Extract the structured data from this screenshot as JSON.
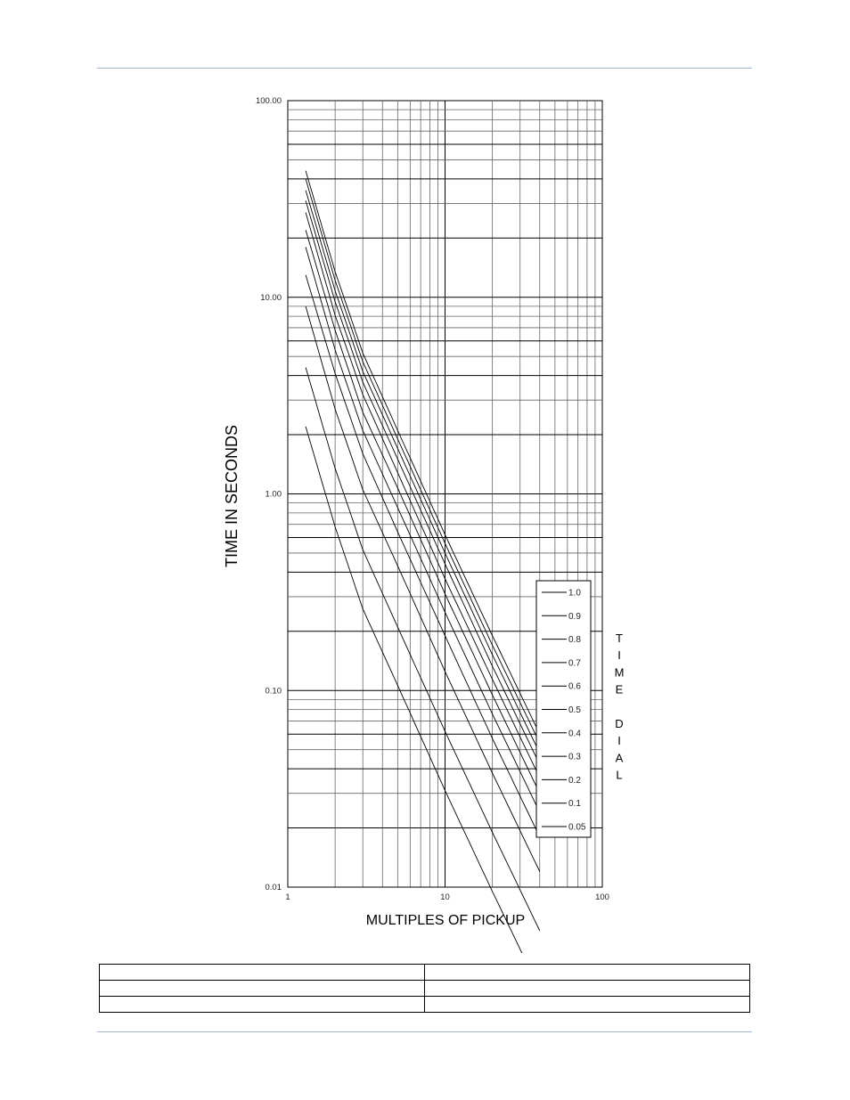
{
  "chart_data": {
    "type": "line",
    "x_scale": "log",
    "y_scale": "log",
    "xlim": [
      1,
      100
    ],
    "ylim": [
      0.01,
      100
    ],
    "xlabel": "MULTIPLES OF PICKUP",
    "ylabel": "TIME IN SECONDS",
    "x_tick_labels": [
      "1",
      "10",
      "100"
    ],
    "y_tick_labels": [
      "0.01",
      "0.10",
      "1.00",
      "10.00",
      "100.00"
    ],
    "grid": true,
    "legend_position": "bottom-right",
    "legend_title": "TIME DIAL",
    "series": [
      {
        "name": "1.0",
        "x": [
          1.3,
          2,
          3,
          5,
          10,
          20,
          40
        ],
        "y": [
          44,
          13.5,
          5.2,
          2.1,
          0.62,
          0.19,
          0.06
        ]
      },
      {
        "name": "0.9",
        "x": [
          1.3,
          2,
          3,
          5,
          10,
          20,
          40
        ],
        "y": [
          40,
          12.2,
          4.7,
          1.9,
          0.56,
          0.17,
          0.054
        ]
      },
      {
        "name": "0.8",
        "x": [
          1.3,
          2,
          3,
          5,
          10,
          20,
          40
        ],
        "y": [
          35,
          10.8,
          4.2,
          1.7,
          0.5,
          0.152,
          0.048
        ]
      },
      {
        "name": "0.7",
        "x": [
          1.3,
          2,
          3,
          5,
          10,
          20,
          40
        ],
        "y": [
          31,
          9.5,
          3.7,
          1.5,
          0.44,
          0.133,
          0.042
        ]
      },
      {
        "name": "0.6",
        "x": [
          1.3,
          2,
          3,
          5,
          10,
          20,
          40
        ],
        "y": [
          27,
          8.1,
          3.2,
          1.28,
          0.37,
          0.114,
          0.036
        ]
      },
      {
        "name": "0.5",
        "x": [
          1.3,
          2,
          3,
          5,
          10,
          20,
          40
        ],
        "y": [
          22,
          6.8,
          2.6,
          1.07,
          0.31,
          0.095,
          0.03
        ]
      },
      {
        "name": "0.4",
        "x": [
          1.3,
          2,
          3,
          5,
          10,
          20,
          40
        ],
        "y": [
          18,
          5.4,
          2.1,
          0.85,
          0.25,
          0.076,
          0.024
        ]
      },
      {
        "name": "0.3",
        "x": [
          1.3,
          2,
          3,
          5,
          10,
          20,
          40
        ],
        "y": [
          13,
          4.1,
          1.6,
          0.64,
          0.19,
          0.057,
          0.018
        ]
      },
      {
        "name": "0.2",
        "x": [
          1.3,
          2,
          3,
          5,
          10,
          20,
          40
        ],
        "y": [
          9,
          2.7,
          1.05,
          0.43,
          0.125,
          0.038,
          0.012
        ]
      },
      {
        "name": "0.1",
        "x": [
          1.3,
          2,
          3,
          5,
          10,
          20,
          40
        ],
        "y": [
          4.4,
          1.35,
          0.52,
          0.21,
          0.062,
          0.019,
          0.006
        ]
      },
      {
        "name": "0.05",
        "x": [
          1.3,
          2,
          3,
          5,
          10,
          20,
          40
        ],
        "y": [
          2.2,
          0.68,
          0.26,
          0.106,
          0.031,
          0.0095,
          0.003
        ]
      }
    ]
  },
  "side_title_letters": [
    "T",
    "I",
    "M",
    "E",
    "",
    "D",
    "I",
    "A",
    "L"
  ],
  "footer_table": {
    "rows": [
      [
        "",
        ""
      ],
      [
        "",
        ""
      ],
      [
        "",
        ""
      ]
    ]
  },
  "colors": {
    "rule": "#9dbad8",
    "grid_major": "#000000",
    "grid_minor": "#555555",
    "curve": "#000000"
  }
}
